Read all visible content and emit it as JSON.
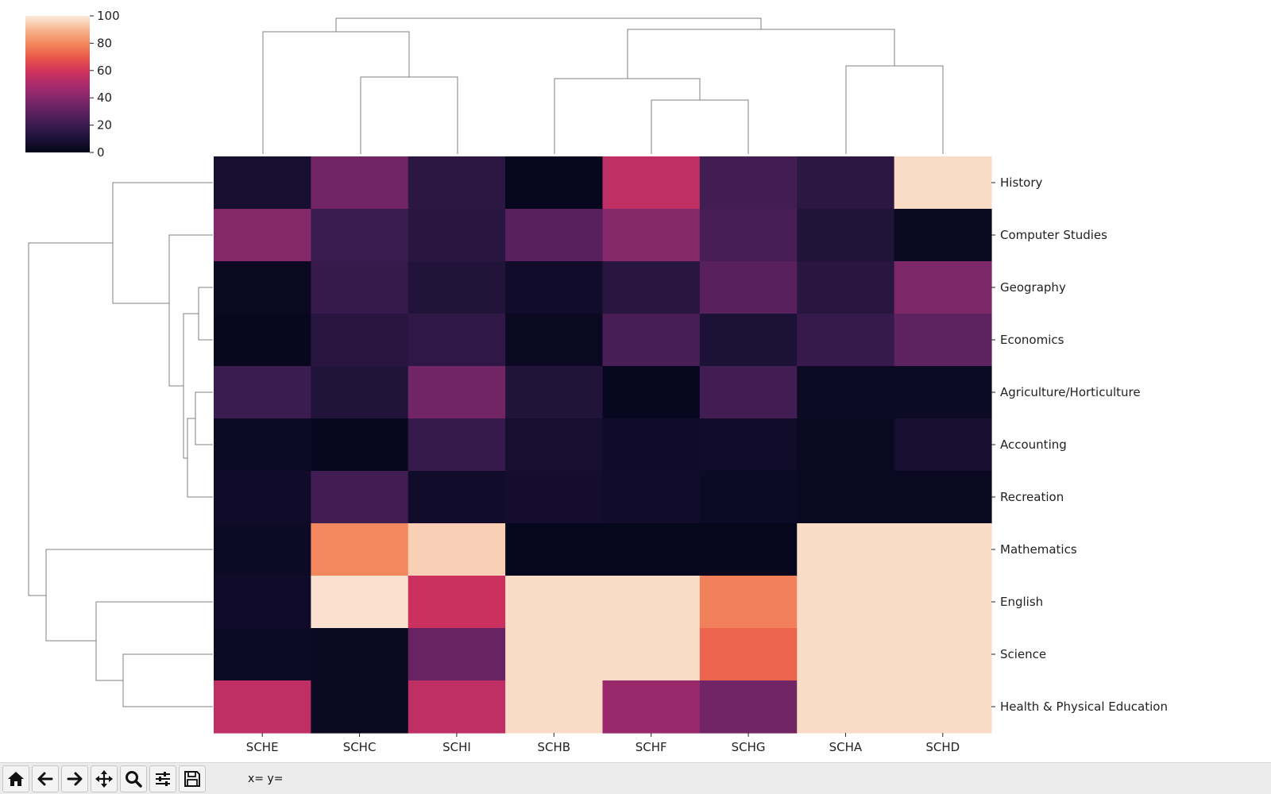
{
  "chart_data": {
    "type": "heatmap",
    "columns": [
      "SCHE",
      "SCHC",
      "SCHI",
      "SCHB",
      "SCHF",
      "SCHG",
      "SCHA",
      "SCHD"
    ],
    "rows": [
      "History",
      "Computer Studies",
      "Geography",
      "Economics",
      "Agriculture/Horticulture",
      "Accounting",
      "Recreation",
      "Mathematics",
      "English",
      "Science",
      "Health & Physical Education"
    ],
    "values": [
      [
        8,
        35,
        15,
        1,
        55,
        22,
        15,
        97
      ],
      [
        40,
        20,
        14,
        28,
        40,
        24,
        12,
        3
      ],
      [
        3,
        18,
        12,
        6,
        14,
        28,
        14,
        38
      ],
      [
        2,
        14,
        16,
        3,
        24,
        10,
        18,
        30
      ],
      [
        20,
        12,
        35,
        12,
        2,
        22,
        4,
        4
      ],
      [
        4,
        2,
        18,
        8,
        5,
        6,
        3,
        8
      ],
      [
        5,
        22,
        6,
        7,
        6,
        4,
        3,
        3
      ],
      [
        4,
        80,
        95,
        1,
        1,
        1,
        97,
        97
      ],
      [
        5,
        98,
        58,
        97,
        97,
        78,
        97,
        97
      ],
      [
        4,
        3,
        32,
        97,
        97,
        72,
        97,
        97
      ],
      [
        55,
        3,
        55,
        97,
        45,
        35,
        97,
        97
      ]
    ],
    "colorbar": {
      "min": 0,
      "max": 100,
      "ticks": [
        "0",
        "20",
        "40",
        "60",
        "80",
        "100"
      ]
    },
    "colormap": "rocket",
    "row_dendrogram": true,
    "col_dendrogram": true
  },
  "toolbar": {
    "buttons": [
      {
        "name": "home-button",
        "icon": "home-icon"
      },
      {
        "name": "back-button",
        "icon": "arrow-left-icon"
      },
      {
        "name": "forward-button",
        "icon": "arrow-right-icon"
      },
      {
        "name": "pan-button",
        "icon": "move-icon"
      },
      {
        "name": "zoom-button",
        "icon": "magnifier-icon"
      },
      {
        "name": "configure-subplots-button",
        "icon": "sliders-icon"
      },
      {
        "name": "save-button",
        "icon": "floppy-disk-icon"
      }
    ],
    "coords": "x= y="
  }
}
